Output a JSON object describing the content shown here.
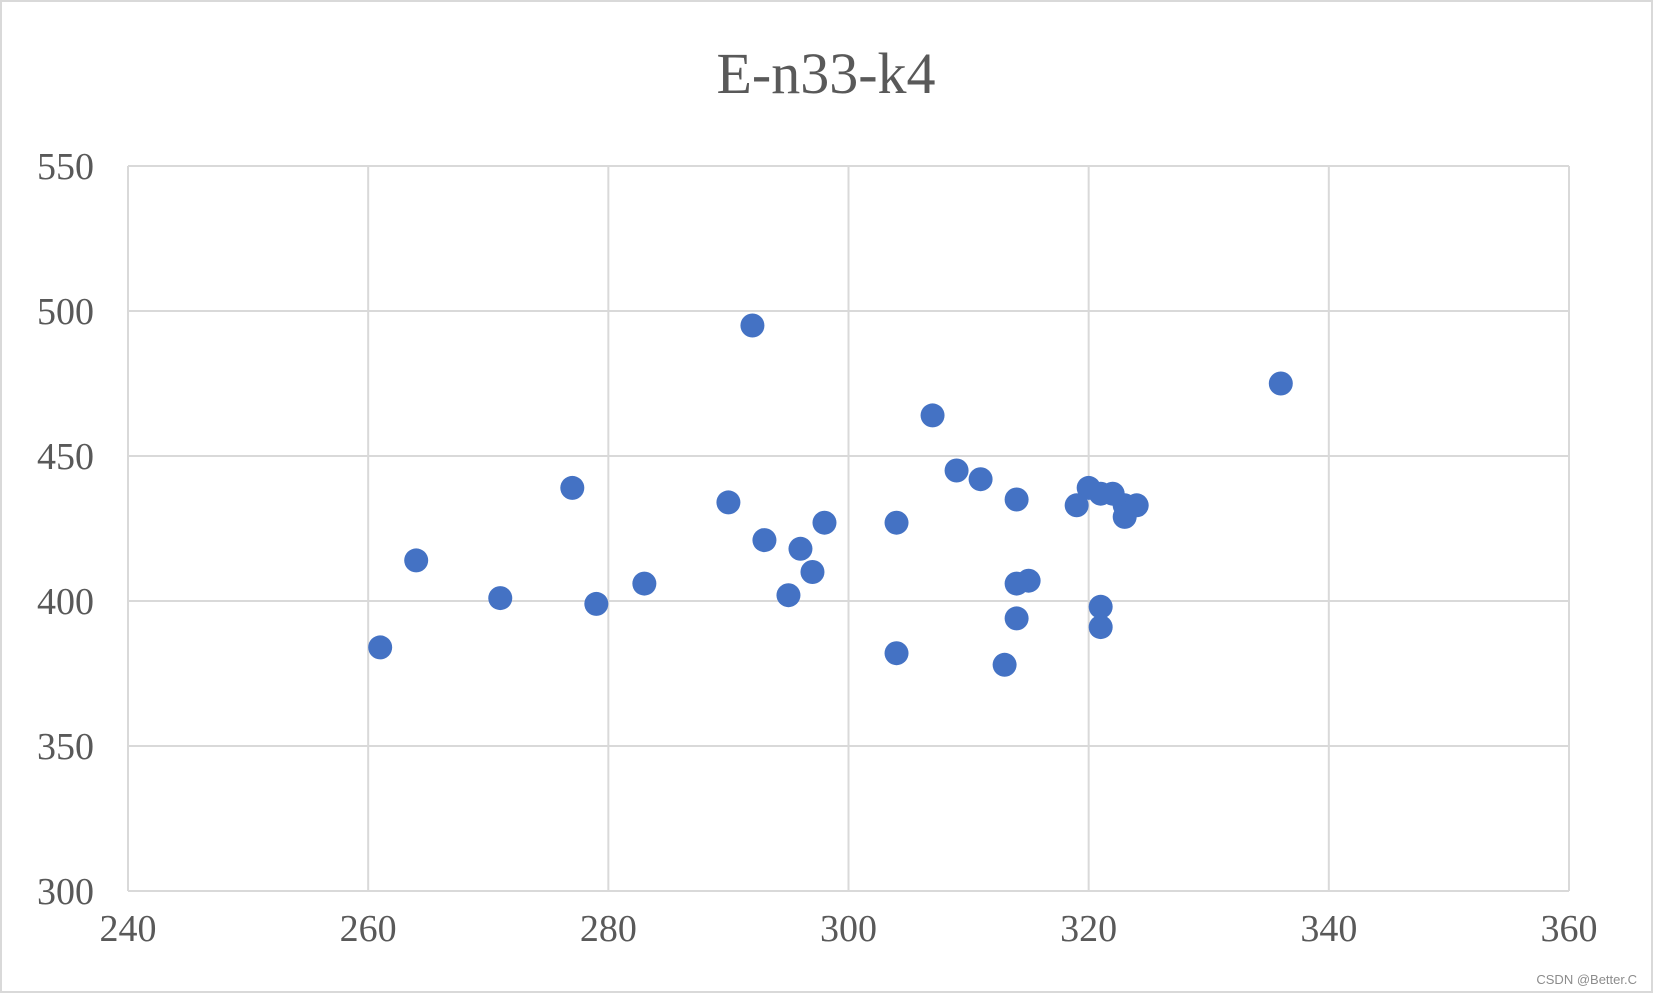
{
  "chart_data": {
    "type": "scatter",
    "title": "E-n33-k4",
    "xlabel": "",
    "ylabel": "",
    "xlim": [
      240,
      360
    ],
    "ylim": [
      300,
      550
    ],
    "x_ticks": [
      "240",
      "260",
      "280",
      "300",
      "320",
      "340",
      "360"
    ],
    "y_ticks": [
      "300",
      "350",
      "400",
      "450",
      "500",
      "550"
    ],
    "grid": true,
    "legend": "none",
    "marker_color": "#4472C4",
    "points": [
      {
        "x": 292,
        "y": 495
      },
      {
        "x": 336,
        "y": 475
      },
      {
        "x": 307,
        "y": 464
      },
      {
        "x": 309,
        "y": 445
      },
      {
        "x": 311,
        "y": 442
      },
      {
        "x": 277,
        "y": 439
      },
      {
        "x": 320,
        "y": 439
      },
      {
        "x": 321,
        "y": 437
      },
      {
        "x": 322,
        "y": 437
      },
      {
        "x": 314,
        "y": 435
      },
      {
        "x": 290,
        "y": 434
      },
      {
        "x": 319,
        "y": 433
      },
      {
        "x": 323,
        "y": 433
      },
      {
        "x": 324,
        "y": 433
      },
      {
        "x": 323,
        "y": 429
      },
      {
        "x": 298,
        "y": 427
      },
      {
        "x": 304,
        "y": 427
      },
      {
        "x": 293,
        "y": 421
      },
      {
        "x": 296,
        "y": 418
      },
      {
        "x": 264,
        "y": 414
      },
      {
        "x": 297,
        "y": 410
      },
      {
        "x": 315,
        "y": 407
      },
      {
        "x": 283,
        "y": 406
      },
      {
        "x": 314,
        "y": 406
      },
      {
        "x": 295,
        "y": 402
      },
      {
        "x": 271,
        "y": 401
      },
      {
        "x": 279,
        "y": 399
      },
      {
        "x": 321,
        "y": 398
      },
      {
        "x": 314,
        "y": 394
      },
      {
        "x": 321,
        "y": 391
      },
      {
        "x": 261,
        "y": 384
      },
      {
        "x": 304,
        "y": 382
      },
      {
        "x": 313,
        "y": 378
      }
    ]
  },
  "watermark": "CSDN @Better.C"
}
